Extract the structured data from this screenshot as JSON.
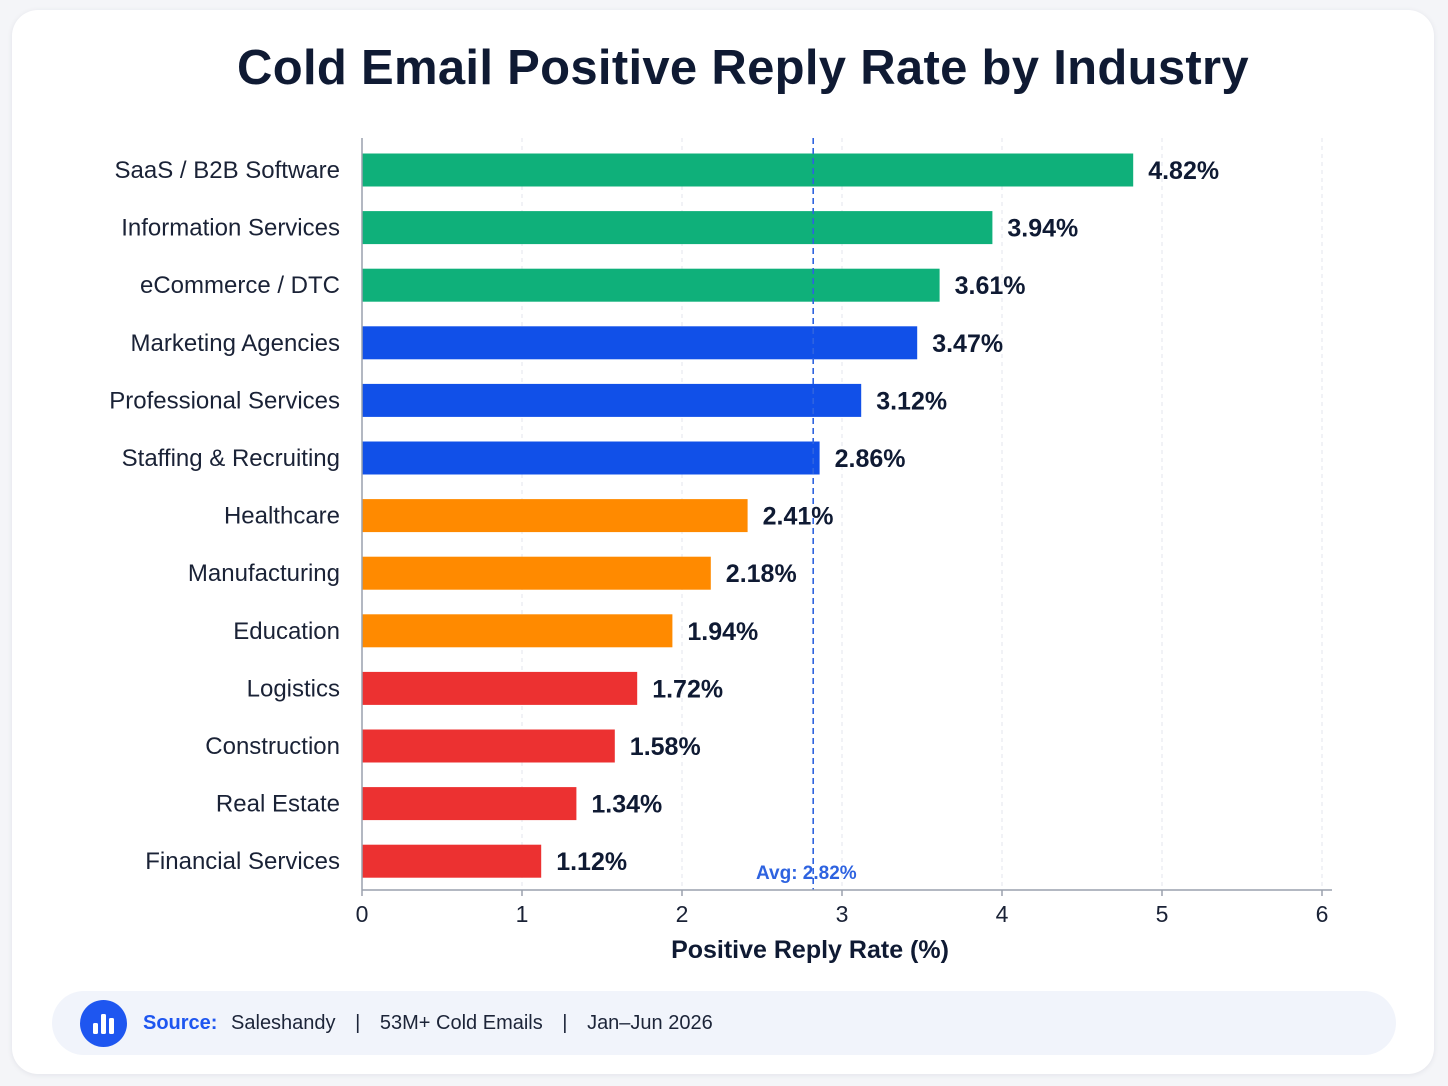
{
  "chart_data": {
    "type": "bar",
    "orientation": "horizontal",
    "title": "Cold Email Positive Reply Rate by Industry",
    "xlabel": "Positive Reply Rate (%)",
    "ylabel": "",
    "xlim": [
      0,
      6
    ],
    "xticks": [
      "0",
      "1",
      "2",
      "3",
      "4",
      "5",
      "6"
    ],
    "grid": "vertical dashed",
    "categories": [
      "SaaS / B2B Software",
      "Information Services",
      "eCommerce / DTC",
      "Marketing Agencies",
      "Professional Services",
      "Staffing & Recruiting",
      "Healthcare",
      "Manufacturing",
      "Education",
      "Logistics",
      "Construction",
      "Real Estate",
      "Financial Services"
    ],
    "values": [
      4.82,
      3.94,
      3.61,
      3.47,
      3.12,
      2.86,
      2.41,
      2.18,
      1.94,
      1.72,
      1.58,
      1.34,
      1.12
    ],
    "value_labels": [
      "4.82%",
      "3.94%",
      "3.61%",
      "3.47%",
      "3.12%",
      "2.86%",
      "2.41%",
      "2.18%",
      "1.94%",
      "1.72%",
      "1.58%",
      "1.34%",
      "1.12%"
    ],
    "bar_colors": [
      "#0fb07a",
      "#0fb07a",
      "#0fb07a",
      "#1150e8",
      "#1150e8",
      "#1150e8",
      "#ff8a00",
      "#ff8a00",
      "#ff8a00",
      "#ec3131",
      "#ec3131",
      "#ec3131",
      "#ec3131"
    ],
    "average": {
      "value": 2.82,
      "label": "Avg: 2.82%",
      "color": "#2e63e0"
    }
  },
  "source": {
    "label": "Source:",
    "publisher": "Saleshandy",
    "sample": "53M+ Cold Emails",
    "period": "Jan–Jun 2026",
    "separator": "|",
    "icon": "bar-chart-icon"
  }
}
